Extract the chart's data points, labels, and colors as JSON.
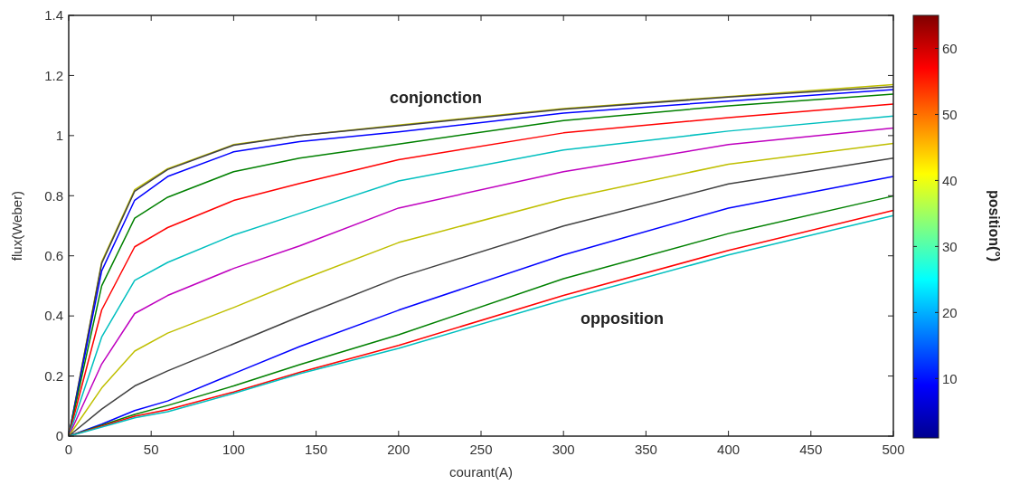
{
  "chart_data": {
    "type": "line",
    "xlabel": "courant(A)",
    "ylabel": "flux(Weber)",
    "clabel": "position(°)",
    "x": [
      0,
      20,
      40,
      60,
      100,
      140,
      200,
      300,
      400,
      500
    ],
    "xlim": [
      0,
      500
    ],
    "xticks": [
      0,
      50,
      100,
      150,
      200,
      250,
      300,
      350,
      400,
      450,
      500
    ],
    "ylim": [
      0,
      1.4
    ],
    "yticks": [
      0,
      0.2,
      0.4,
      0.6,
      0.8,
      1,
      1.2,
      1.4
    ],
    "clim": [
      1,
      65
    ],
    "cticks": [
      10,
      20,
      30,
      40,
      50,
      60
    ],
    "grid": false,
    "marker": "none",
    "line_style": "solid",
    "series": [
      {
        "color": "#bfbf00",
        "values": [
          0,
          0.58,
          0.82,
          0.89,
          0.97,
          1.0,
          1.035,
          1.09,
          1.13,
          1.17
        ]
      },
      {
        "color": "#404040",
        "values": [
          0,
          0.575,
          0.815,
          0.887,
          0.968,
          1.0,
          1.033,
          1.088,
          1.128,
          1.163
        ]
      },
      {
        "color": "#0000ff",
        "values": [
          0,
          0.55,
          0.785,
          0.864,
          0.946,
          0.98,
          1.012,
          1.075,
          1.115,
          1.153
        ]
      },
      {
        "color": "#008000",
        "values": [
          0,
          0.5,
          0.725,
          0.795,
          0.88,
          0.925,
          0.972,
          1.05,
          1.099,
          1.138
        ]
      },
      {
        "color": "#ff0000",
        "values": [
          0,
          0.42,
          0.63,
          0.694,
          0.784,
          0.841,
          0.92,
          1.009,
          1.06,
          1.105
        ]
      },
      {
        "color": "#00bfbf",
        "values": [
          0,
          0.33,
          0.518,
          0.578,
          0.669,
          0.741,
          0.849,
          0.952,
          1.015,
          1.065
        ]
      },
      {
        "color": "#bf00bf",
        "values": [
          0,
          0.24,
          0.408,
          0.468,
          0.558,
          0.633,
          0.759,
          0.88,
          0.97,
          1.025
        ]
      },
      {
        "color": "#bfbf00",
        "values": [
          0,
          0.16,
          0.283,
          0.343,
          0.428,
          0.518,
          0.644,
          0.789,
          0.905,
          0.974
        ]
      },
      {
        "color": "#404040",
        "values": [
          0,
          0.09,
          0.167,
          0.217,
          0.307,
          0.398,
          0.528,
          0.699,
          0.839,
          0.925
        ]
      },
      {
        "color": "#0000ff",
        "values": [
          0,
          0.04,
          0.085,
          0.117,
          0.208,
          0.298,
          0.419,
          0.603,
          0.759,
          0.864
        ]
      },
      {
        "color": "#008000",
        "values": [
          0,
          0.036,
          0.072,
          0.102,
          0.167,
          0.238,
          0.337,
          0.524,
          0.674,
          0.799
        ]
      },
      {
        "color": "#ff0000",
        "values": [
          0,
          0.033,
          0.066,
          0.088,
          0.147,
          0.212,
          0.302,
          0.468,
          0.618,
          0.751
        ]
      },
      {
        "color": "#00bfbf",
        "values": [
          0,
          0.03,
          0.061,
          0.081,
          0.142,
          0.208,
          0.292,
          0.453,
          0.603,
          0.734
        ]
      }
    ],
    "annotations": [
      "conjonction",
      "opposition"
    ]
  }
}
